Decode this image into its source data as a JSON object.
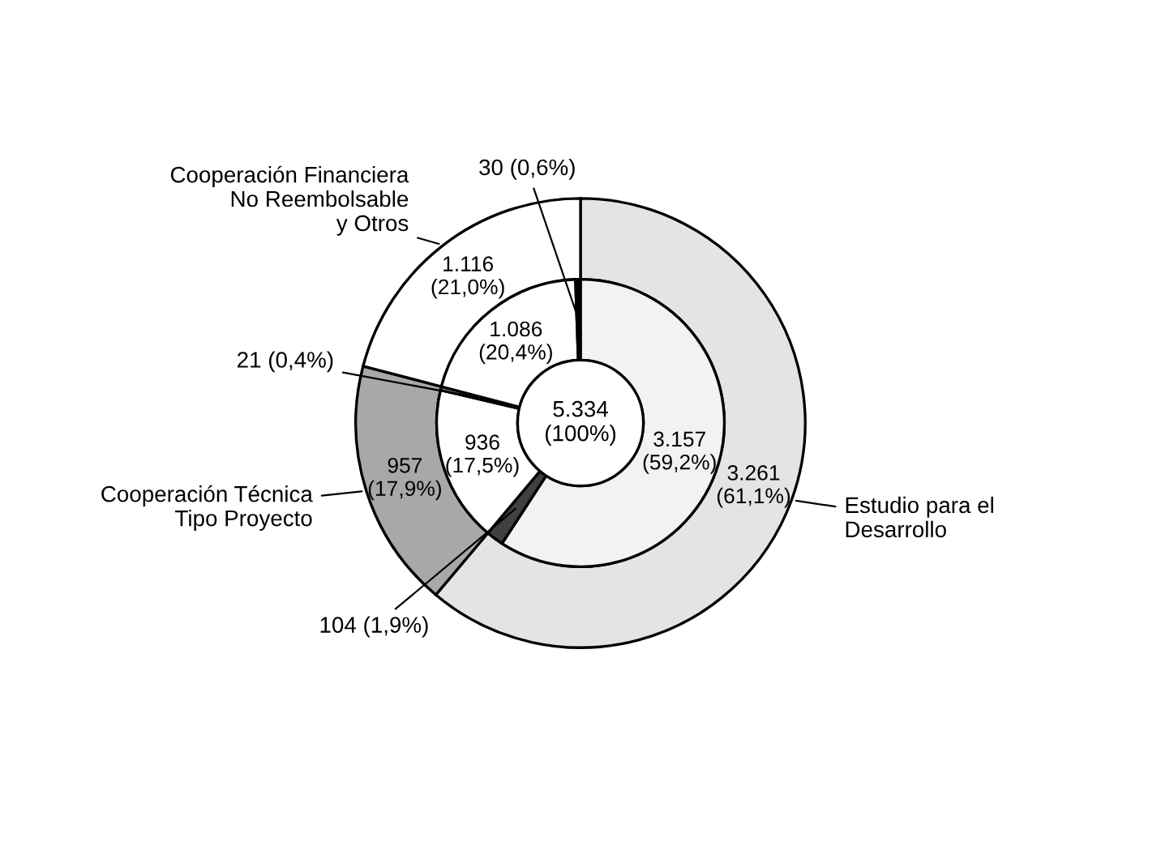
{
  "chart_data": {
    "type": "donut",
    "series": [
      {
        "values": [
          3261,
          957,
          1116
        ],
        "colors": [
          "#e4e4e4",
          "#a8a8a8",
          "#ffffff"
        ],
        "value_labels": [
          "3.261 (61,1%)",
          "957 (17,9%)",
          "1.116 (21,0%)"
        ]
      },
      {
        "values": [
          3157,
          104,
          936,
          21,
          1086,
          30
        ],
        "colors": [
          "#f2f2f2",
          "#404040",
          "#ffffff",
          "#d0d0d0",
          "#ffffff",
          "#000000"
        ],
        "value_labels": [
          "3.157 (59,2%)",
          "104 (1,9%)",
          "936 (17,5%)",
          "21 (0,4%)",
          "1.086 (20,4%)",
          "30 (0,6%)"
        ]
      }
    ],
    "annotations": [
      "Estudio para el Desarrollo",
      "Cooperación Técnica Tipo Proyecto",
      "Cooperación Financiera No Reembolsable y Otros",
      "5.334 (100%)"
    ]
  }
}
